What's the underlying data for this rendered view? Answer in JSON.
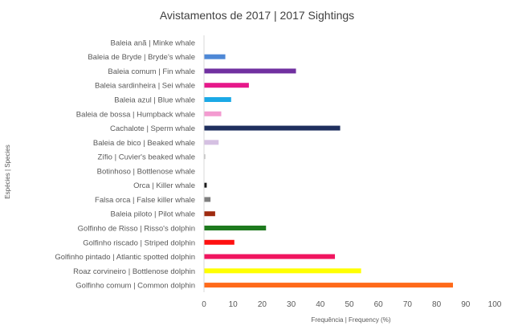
{
  "chart_data": {
    "type": "bar",
    "orientation": "horizontal",
    "title": "Avistamentos de 2017 | 2017 Sightings",
    "xlabel": "Frequência | Frequency (%)",
    "ylabel": "Espécies | Species",
    "xlim": [
      0,
      100
    ],
    "xticks": [
      0,
      10,
      20,
      30,
      40,
      50,
      60,
      70,
      80,
      90,
      100
    ],
    "grid": false,
    "legend": "none",
    "categories": [
      "Baleia anã | Minke whale",
      "Baleia de Bryde | Bryde's whale",
      "Baleia comum | Fin whale",
      "Baleia sardinheira | Sei whale",
      "Baleia azul | Blue whale",
      "Baleia de bossa | Humpback whale",
      "Cachalote | Sperm whale",
      "Baleia de bico | Beaked whale",
      "Zífio | Cuvier's beaked whale",
      "Botinhoso | Bottlenose whale",
      "Orca | Killer whale",
      "Falsa orca | False killer whale",
      "Baleia piloto | Pilot whale",
      "Golfinho de Risso | Risso's dolphin",
      "Golfinho riscado | Striped dolphin",
      "Golfinho pintado | Atlantic spotted dolphin",
      "Roaz corvineiro | Bottlenose dolphin",
      "Golfinho comum | Common dolphin"
    ],
    "values": [
      0,
      7.2,
      31.5,
      15.3,
      9.2,
      5.8,
      46.7,
      4.9,
      0.3,
      0,
      0.8,
      2.1,
      3.7,
      21.2,
      10.3,
      44.9,
      53.9,
      85.5
    ],
    "colors": [
      "#4472C4",
      "#4E88D6",
      "#7030A0",
      "#E6188A",
      "#1BA9E6",
      "#F39BD0",
      "#1F2F5E",
      "#D5C0E2",
      "#B7B7B7",
      "#B7B7B7",
      "#1A1A1A",
      "#7F7F7F",
      "#9E2A0F",
      "#1E7A1E",
      "#FF1010",
      "#F0155F",
      "#FFFF00",
      "#FF6A1A"
    ]
  }
}
